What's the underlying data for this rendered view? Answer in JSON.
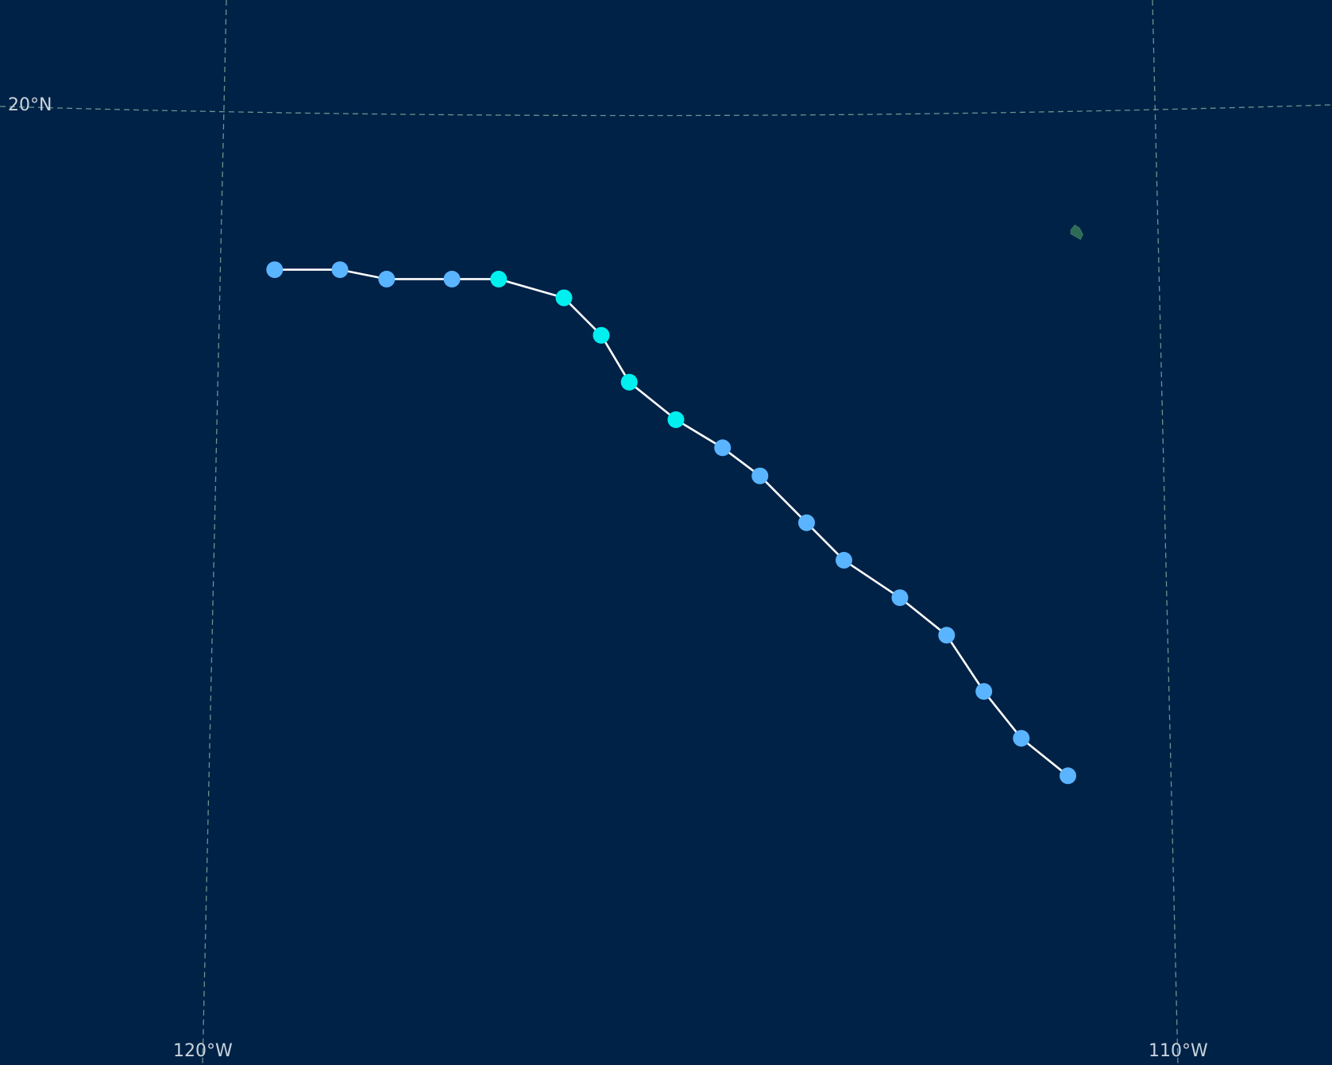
{
  "map": {
    "background_color": "#002247",
    "graticule_color": "#7fa89a",
    "track_line_color": "#ffffff",
    "land_color": "#2e6a55",
    "graticule_labels": {
      "lat_20": "20°N",
      "lon_120": "120°W",
      "lon_110": "110°W"
    },
    "legend_colors": {
      "tropical_depression": "#5ab4ff",
      "tropical_storm": "#00f0f0"
    }
  },
  "chart_data": {
    "type": "map-track",
    "track": [
      {
        "lon": -119.5,
        "lat": 18.3,
        "category": "tropical_depression"
      },
      {
        "lon": -118.8,
        "lat": 18.3,
        "category": "tropical_depression"
      },
      {
        "lon": -118.3,
        "lat": 18.2,
        "category": "tropical_depression"
      },
      {
        "lon": -117.6,
        "lat": 18.2,
        "category": "tropical_depression"
      },
      {
        "lon": -117.1,
        "lat": 18.2,
        "category": "tropical_storm"
      },
      {
        "lon": -116.4,
        "lat": 18.0,
        "category": "tropical_storm"
      },
      {
        "lon": -116.0,
        "lat": 17.6,
        "category": "tropical_storm"
      },
      {
        "lon": -115.7,
        "lat": 17.1,
        "category": "tropical_storm"
      },
      {
        "lon": -115.2,
        "lat": 16.7,
        "category": "tropical_storm"
      },
      {
        "lon": -114.7,
        "lat": 16.4,
        "category": "tropical_depression"
      },
      {
        "lon": -114.3,
        "lat": 16.1,
        "category": "tropical_depression"
      },
      {
        "lon": -113.8,
        "lat": 15.6,
        "category": "tropical_depression"
      },
      {
        "lon": -113.4,
        "lat": 15.2,
        "category": "tropical_depression"
      },
      {
        "lon": -112.8,
        "lat": 14.8,
        "category": "tropical_depression"
      },
      {
        "lon": -112.3,
        "lat": 14.4,
        "category": "tropical_depression"
      },
      {
        "lon": -111.9,
        "lat": 13.8,
        "category": "tropical_depression"
      },
      {
        "lon": -111.5,
        "lat": 13.3,
        "category": "tropical_depression"
      },
      {
        "lon": -111.0,
        "lat": 12.9,
        "category": "tropical_depression"
      }
    ],
    "islands": [
      {
        "name": "",
        "lon": -110.9,
        "lat": 18.7
      }
    ]
  }
}
